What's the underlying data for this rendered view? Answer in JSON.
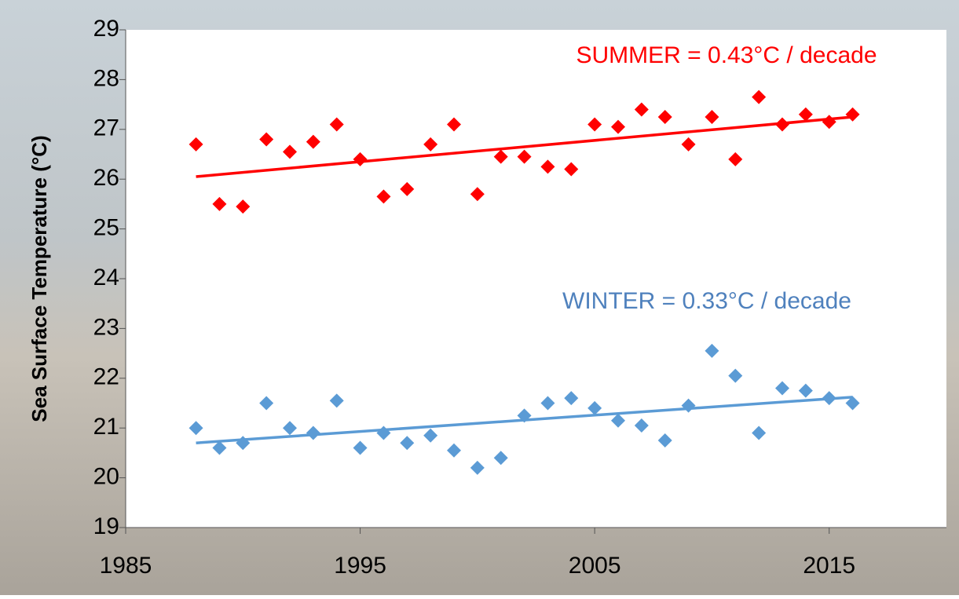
{
  "chart_data": {
    "type": "scatter",
    "y_label": "Sea  Surface Temperature (°C)",
    "annotations": [
      "SUMMER = 0.43°C / decade",
      "WINTER = 0.33°C / decade"
    ],
    "x": [
      1988,
      1989,
      1990,
      1991,
      1992,
      1993,
      1994,
      1995,
      1996,
      1997,
      1998,
      1999,
      2000,
      2001,
      2002,
      2003,
      2004,
      2005,
      2006,
      2007,
      2008,
      2009,
      2010,
      2011,
      2012,
      2013,
      2014,
      2015,
      2016
    ],
    "trend_x": [
      1988,
      2016
    ],
    "series": [
      {
        "color": "#ff0000",
        "values": [
          26.7,
          25.5,
          25.45,
          26.8,
          26.55,
          26.75,
          27.1,
          26.4,
          25.65,
          25.8,
          26.7,
          27.1,
          25.7,
          26.45,
          26.45,
          26.25,
          26.2,
          27.1,
          27.05,
          27.4,
          27.25,
          26.7,
          27.25,
          26.4,
          27.65,
          27.1,
          27.3,
          27.15,
          27.3
        ],
        "trend": [
          26.05,
          27.25
        ]
      },
      {
        "color": "#5b9bd5",
        "values": [
          21.0,
          20.6,
          20.7,
          21.5,
          21.0,
          20.9,
          21.55,
          20.6,
          20.9,
          20.7,
          20.85,
          20.55,
          20.2,
          20.4,
          21.25,
          21.5,
          21.6,
          21.4,
          21.15,
          21.05,
          20.75,
          21.45,
          22.55,
          22.05,
          20.9,
          21.8,
          21.75,
          21.6,
          21.5
        ],
        "trend": [
          20.7,
          21.62
        ]
      }
    ],
    "xlim": [
      1985,
      2020
    ],
    "xticks": [
      1985,
      1995,
      2005,
      2015
    ],
    "ylim": [
      19,
      29
    ],
    "yticks": [
      19,
      20,
      21,
      22,
      23,
      24,
      25,
      26,
      27,
      28,
      29
    ]
  }
}
